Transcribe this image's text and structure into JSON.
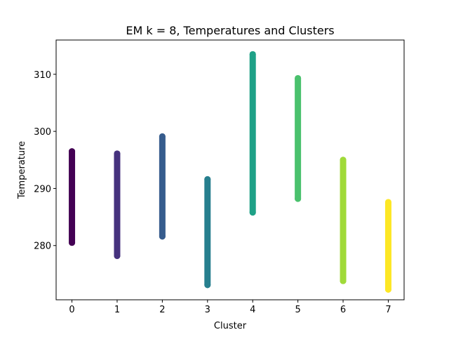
{
  "chart_data": {
    "type": "scatter",
    "title": "EM k = 8, Temperatures and Clusters",
    "xlabel": "Cluster",
    "ylabel": "Temperature",
    "xlim": [
      -0.35,
      7.35
    ],
    "ylim": [
      270.5,
      316.0
    ],
    "xticks": [
      0,
      1,
      2,
      3,
      4,
      5,
      6,
      7
    ],
    "yticks": [
      280,
      290,
      300,
      310
    ],
    "grid": false,
    "series": [
      {
        "x": 0,
        "min": 280.5,
        "max": 296.5,
        "color": "#440154"
      },
      {
        "x": 1,
        "min": 278.2,
        "max": 296.1,
        "color": "#46327e"
      },
      {
        "x": 2,
        "min": 281.6,
        "max": 299.1,
        "color": "#365c8d"
      },
      {
        "x": 3,
        "min": 273.1,
        "max": 291.6,
        "color": "#277f8e"
      },
      {
        "x": 4,
        "min": 285.8,
        "max": 313.5,
        "color": "#1fa187"
      },
      {
        "x": 5,
        "min": 288.2,
        "max": 309.3,
        "color": "#4ac16d"
      },
      {
        "x": 6,
        "min": 273.8,
        "max": 295.0,
        "color": "#a0da39"
      },
      {
        "x": 7,
        "min": 272.3,
        "max": 287.6,
        "color": "#fde725"
      }
    ]
  }
}
